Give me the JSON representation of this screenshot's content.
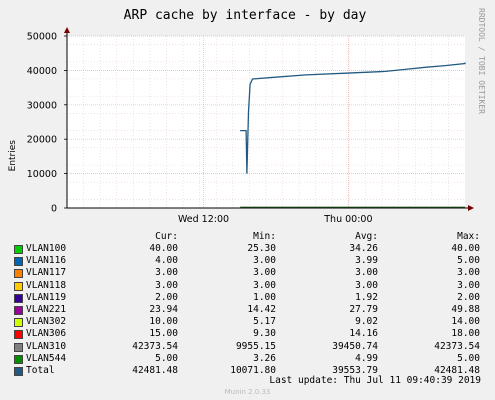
{
  "chart_data": {
    "type": "line",
    "title": "ARP cache by interface - by day",
    "ylabel": "Entries",
    "ylim": [
      0,
      50000
    ],
    "yticks": [
      "0",
      "10000",
      "20000",
      "30000",
      "40000",
      "50000"
    ],
    "xticks": [
      "Wed 12:00",
      "Thu 00:00"
    ],
    "grid": true,
    "series": [
      {
        "name": "Total",
        "color": "#235a82",
        "points": [
          [
            0.435,
            22500
          ],
          [
            0.45,
            22500
          ],
          [
            0.452,
            10000
          ],
          [
            0.456,
            28000
          ],
          [
            0.46,
            36000
          ],
          [
            0.466,
            37500
          ],
          [
            0.52,
            38000
          ],
          [
            0.6,
            38700
          ],
          [
            0.7,
            39200
          ],
          [
            0.8,
            39700
          ],
          [
            0.85,
            40300
          ],
          [
            0.9,
            40900
          ],
          [
            0.95,
            41400
          ],
          [
            1.0,
            42000
          ],
          [
            1.02,
            42300
          ]
        ]
      }
    ],
    "baseline_from": 0.435
  },
  "side_label": "RRDTOOL / TOBI OETIKER",
  "legend": {
    "headers": {
      "cur": "Cur:",
      "min": "Min:",
      "avg": "Avg:",
      "max": "Max:"
    },
    "rows": [
      {
        "name": "VLAN100",
        "color": "#00cc00",
        "cur": "40.00",
        "min": "25.30",
        "avg": "34.26",
        "max": "40.00"
      },
      {
        "name": "VLAN116",
        "color": "#0066b3",
        "cur": "4.00",
        "min": "3.00",
        "avg": "3.99",
        "max": "5.00"
      },
      {
        "name": "VLAN117",
        "color": "#ff8000",
        "cur": "3.00",
        "min": "3.00",
        "avg": "3.00",
        "max": "3.00"
      },
      {
        "name": "VLAN118",
        "color": "#ffcc00",
        "cur": "3.00",
        "min": "3.00",
        "avg": "3.00",
        "max": "3.00"
      },
      {
        "name": "VLAN119",
        "color": "#330099",
        "cur": "2.00",
        "min": "1.00",
        "avg": "1.92",
        "max": "2.00"
      },
      {
        "name": "VLAN221",
        "color": "#990099",
        "cur": "23.94",
        "min": "14.42",
        "avg": "27.79",
        "max": "49.88"
      },
      {
        "name": "VLAN302",
        "color": "#ccff00",
        "cur": "10.00",
        "min": "5.17",
        "avg": "9.02",
        "max": "14.00"
      },
      {
        "name": "VLAN306",
        "color": "#ff0000",
        "cur": "15.00",
        "min": "9.30",
        "avg": "14.16",
        "max": "18.00"
      },
      {
        "name": "VLAN310",
        "color": "#808080",
        "cur": "42373.54",
        "min": "9955.15",
        "avg": "39450.74",
        "max": "42373.54"
      },
      {
        "name": "VLAN544",
        "color": "#008f00",
        "cur": "5.00",
        "min": "3.26",
        "avg": "4.99",
        "max": "5.00"
      },
      {
        "name": "Total",
        "color": "#235a82",
        "cur": "42481.48",
        "min": "10071.80",
        "avg": "39553.79",
        "max": "42481.48"
      }
    ]
  },
  "footer": "Last update: Thu Jul 11 09:40:39 2019",
  "munin": "Munin 2.0.33"
}
